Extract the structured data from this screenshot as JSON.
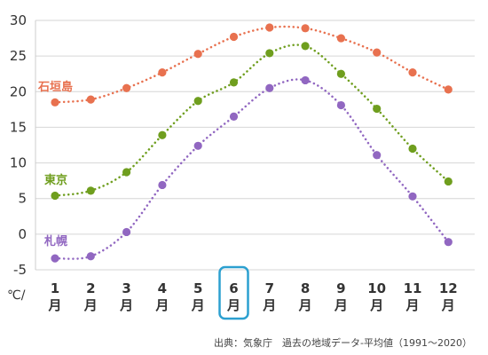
{
  "chart_data": {
    "type": "line",
    "unit_label": "℃/",
    "categories": [
      "1",
      "2",
      "3",
      "4",
      "5",
      "6",
      "7",
      "8",
      "9",
      "10",
      "11",
      "12"
    ],
    "category_suffix": "月",
    "highlighted_category": "6",
    "highlight_color": "#2ca0d0",
    "ylim": [
      -5,
      30
    ],
    "yticks": [
      -5,
      0,
      5,
      10,
      15,
      20,
      25,
      30
    ],
    "grid": true,
    "series": [
      {
        "name": "石垣島",
        "color": "#e8714f",
        "values": [
          18.5,
          18.9,
          20.5,
          22.7,
          25.3,
          27.7,
          29.0,
          28.9,
          27.5,
          25.5,
          22.7,
          20.3
        ]
      },
      {
        "name": "東京",
        "color": "#6f9e1e",
        "values": [
          5.4,
          6.1,
          8.7,
          13.9,
          18.7,
          21.3,
          25.4,
          26.4,
          22.5,
          17.6,
          12.0,
          7.4
        ]
      },
      {
        "name": "札幌",
        "color": "#9167c1",
        "values": [
          -3.4,
          -3.1,
          0.3,
          6.9,
          12.4,
          16.5,
          20.5,
          21.6,
          18.1,
          11.1,
          5.3,
          -1.1
        ]
      }
    ]
  },
  "source_text": "出典：気象庁　過去の地域データ-平均値（1991～2020）"
}
